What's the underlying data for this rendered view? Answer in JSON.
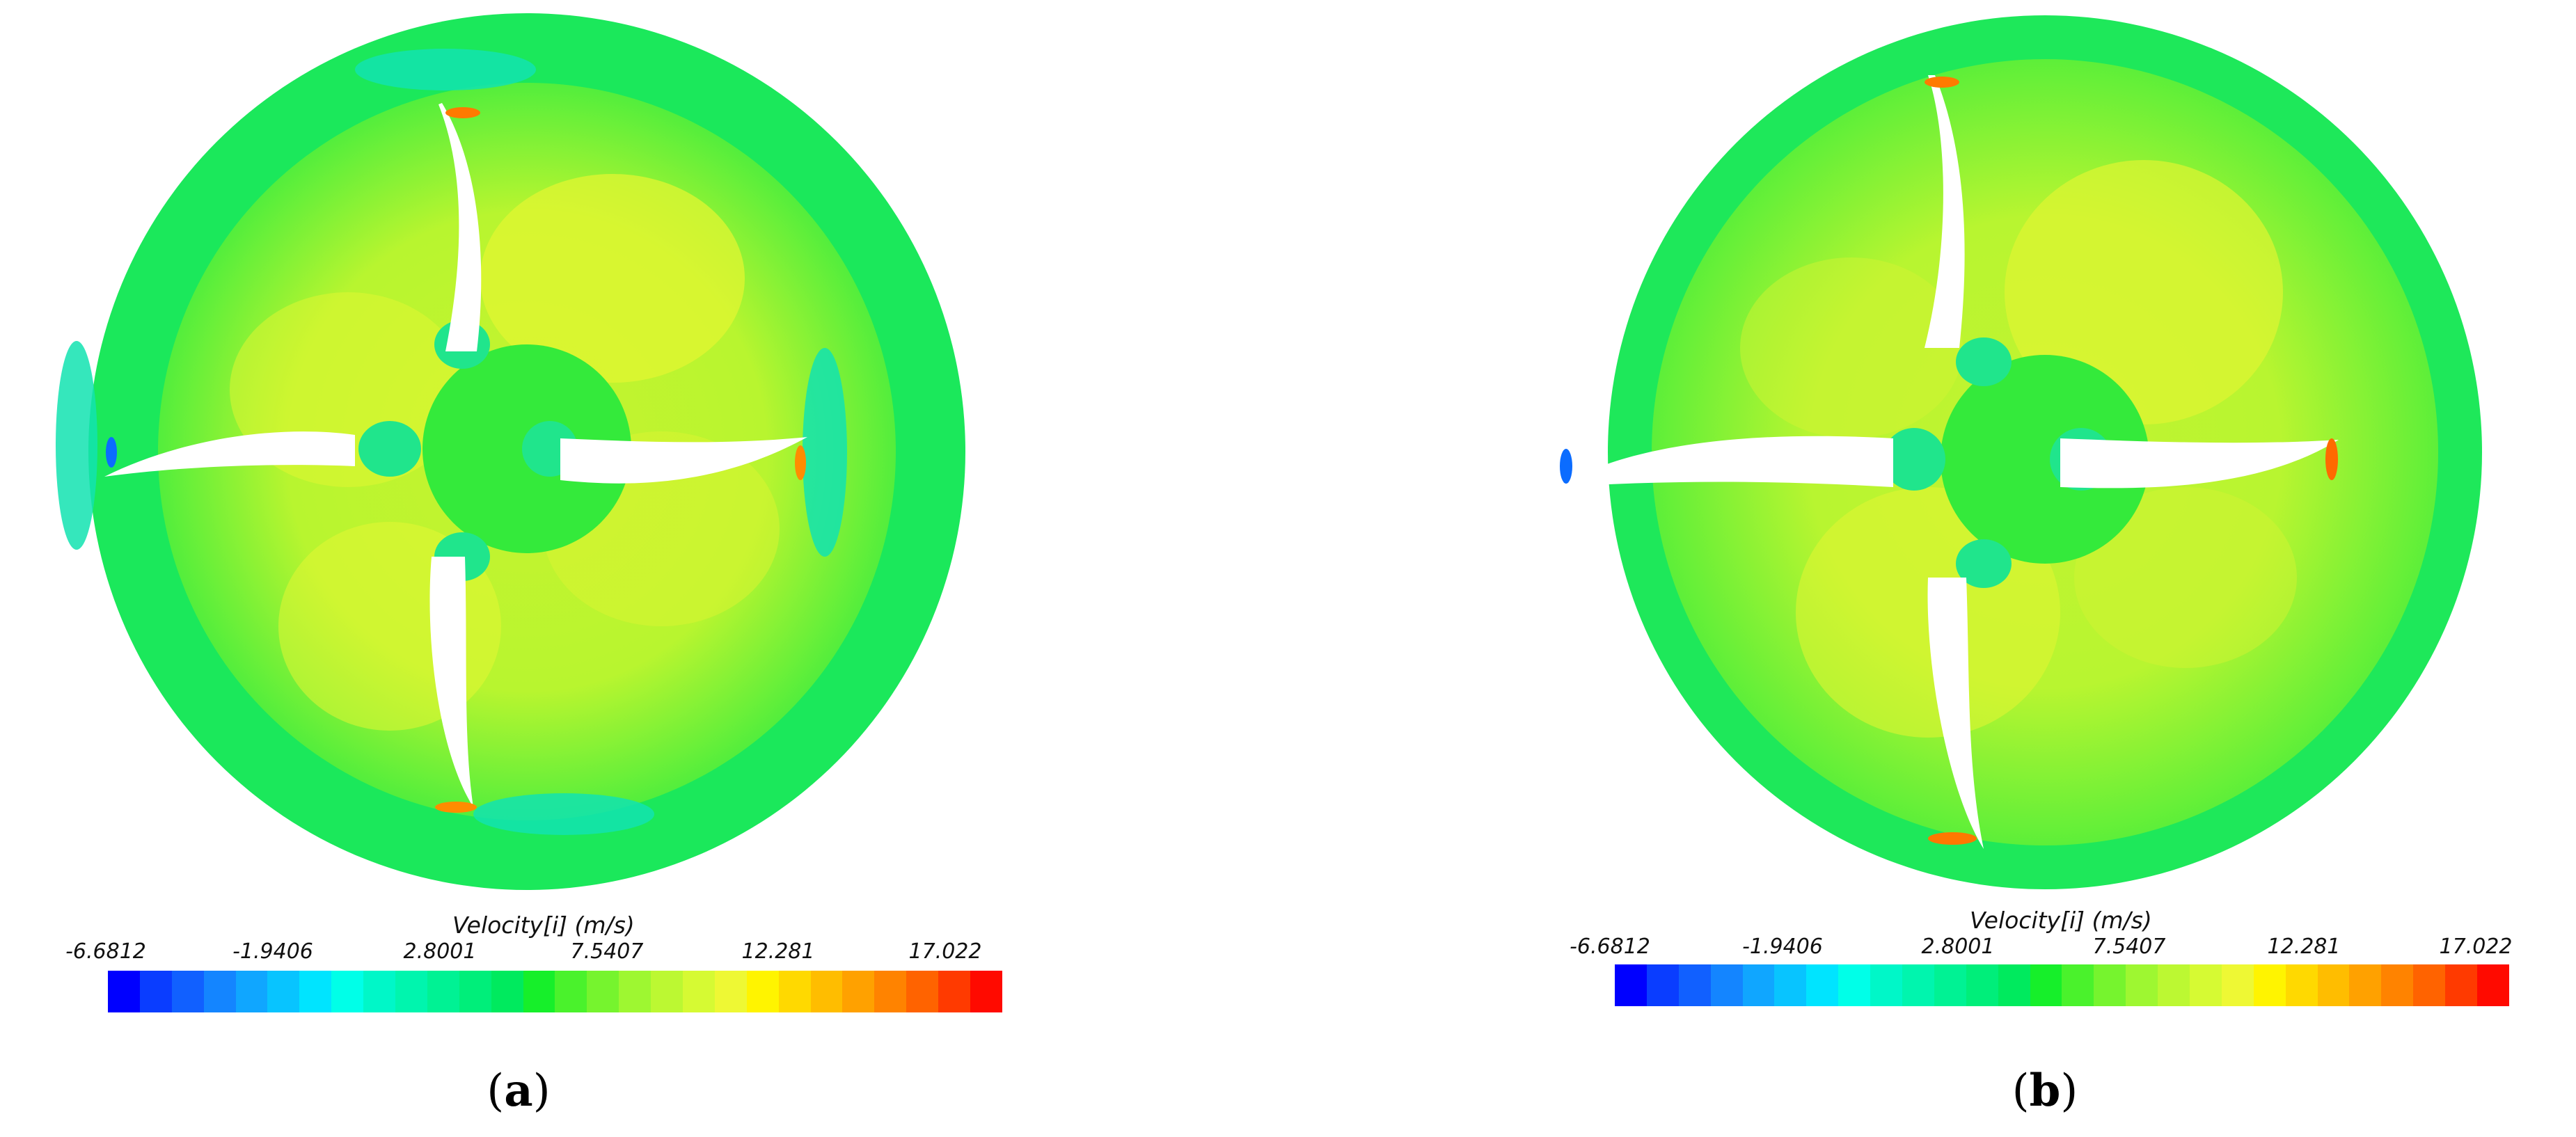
{
  "panels": [
    {
      "caption_open": "(",
      "caption_letter": "a",
      "caption_close": ")",
      "legend": {
        "title": "Velocity[i] (m/s)",
        "ticks": [
          "-6.6812",
          "-1.9406",
          "2.8001",
          "7.5407",
          "12.281",
          "17.022"
        ]
      }
    },
    {
      "caption_open": "(",
      "caption_letter": "b",
      "caption_close": ")",
      "legend": {
        "title": "Velocity[i] (m/s)",
        "ticks": [
          "-6.6812",
          "-1.9406",
          "2.8001",
          "7.5407",
          "12.281",
          "17.022"
        ]
      }
    }
  ],
  "colors": {
    "colormap": [
      "#0000ff",
      "#0a3dff",
      "#1160ff",
      "#1485ff",
      "#10a6ff",
      "#08c4ff",
      "#00e4ff",
      "#00ffe8",
      "#00f7c8",
      "#00f5ae",
      "#00f294",
      "#00ee7a",
      "#00ea5e",
      "#16ef2a",
      "#4af22c",
      "#76f42e",
      "#9ef731",
      "#bcf832",
      "#d6fa33",
      "#eef834",
      "#fff400",
      "#ffd900",
      "#ffbd00",
      "#ffa100",
      "#ff8300",
      "#ff6300",
      "#ff3a00",
      "#ff0a00"
    ],
    "ring": "#19e85a",
    "blade_region": "#b9f52e",
    "hub": "#31ea3a",
    "low_zone": "#19e6b6"
  }
}
